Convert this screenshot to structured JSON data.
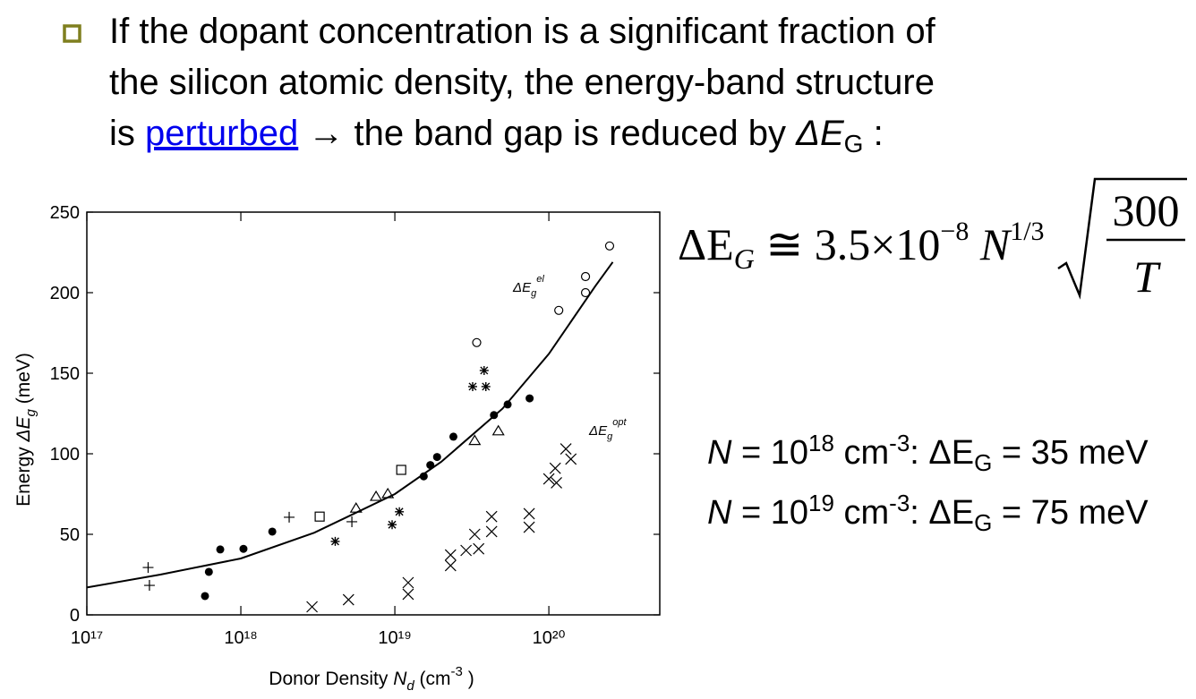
{
  "slide": {
    "bullet_lines": [
      "If the dopant concentration is a significant fraction of",
      "the silicon atomic density, the energy-band structure"
    ],
    "last_line": {
      "start": "is ",
      "link": "perturbed",
      "middle": " → the band gap is reduced by ",
      "symbol": "ΔE",
      "symbol_sub": "G",
      "end": " :"
    },
    "equation": {
      "lhs": "ΔE",
      "lhs_sub": "G",
      "coef": " ≅ 3.5×10",
      "coef_exp": "−8",
      "var": " N",
      "var_exp": "1/3",
      "numerator": "300",
      "denominator": "T"
    },
    "results": [
      {
        "var": "N",
        "base": " = 10",
        "exp": "18",
        "unit": " cm",
        "unit_exp": "-3",
        "delta": ": ΔE",
        "delta_sub": "G",
        "value": " = 35 meV"
      },
      {
        "var": "N",
        "base": " = 10",
        "exp": "19",
        "unit": " cm",
        "unit_exp": "-3",
        "delta": ": ΔE",
        "delta_sub": "G",
        "value": " = 75 meV"
      }
    ]
  },
  "chart_data": {
    "type": "scatter",
    "x_label": {
      "text": "Donor Density ",
      "var": "N",
      "sub": "d",
      "unit": " (cm",
      "unit_exp": "-3",
      "close": " )"
    },
    "y_label": {
      "text": "Energy ",
      "var": "ΔE",
      "sub": "g",
      "unit": " (meV)"
    },
    "annotations": [
      {
        "var": "ΔE",
        "sub": "g",
        "sup": "el"
      },
      {
        "var": "ΔE",
        "sub": "g",
        "sup": "opt"
      }
    ],
    "x_log": true,
    "xlim": [
      1e+17,
      5.25e+20
    ],
    "xticks": [
      {
        "value": 1e+17,
        "label": "10¹⁷"
      },
      {
        "value": 1e+18,
        "label": "10¹⁸"
      },
      {
        "value": 1e+19,
        "label": "10¹⁹"
      },
      {
        "value": 1e+20,
        "label": "10²⁰"
      }
    ],
    "ylim": [
      0,
      250
    ],
    "yticks": [
      0,
      50,
      100,
      150,
      200,
      250
    ],
    "color": "#000000",
    "series": [
      {
        "marker": "line",
        "x": [
          1e+17,
          3e+17,
          1e+18,
          3e+18,
          1e+19,
          2e+19,
          5e+19,
          1e+20,
          2e+20,
          2.6e+20
        ],
        "values": [
          17,
          25,
          35,
          51,
          75,
          95,
          128,
          162,
          204,
          219
        ]
      },
      {
        "marker": "filled-circle",
        "x": [
          5.85e+17,
          6.2e+17,
          7.35e+17,
          1.04e+18,
          1.6e+18,
          1.54e+19,
          1.7e+19,
          1.88e+19,
          2.4e+19,
          4.4e+19,
          5.4e+19,
          7.5e+19
        ],
        "values": [
          11.7,
          26.7,
          40.6,
          41,
          51.7,
          86,
          93,
          98,
          110.6,
          124,
          130.6,
          134.4
        ]
      },
      {
        "marker": "open-circle",
        "x": [
          3.4e+19,
          1.16e+20,
          1.73e+20,
          1.73e+20,
          2.48e+20
        ],
        "values": [
          169,
          189,
          210,
          200,
          229
        ]
      },
      {
        "marker": "asterisk",
        "x": [
          4.1e+18,
          9.6e+18,
          1.07e+19,
          3.2e+19,
          3.9e+19,
          3.8e+19
        ],
        "values": [
          45.6,
          56,
          64,
          141.7,
          141.7,
          151.7
        ]
      },
      {
        "marker": "triangle",
        "x": [
          5.6e+18,
          7.55e+18,
          9e+18,
          3.3e+19,
          4.7e+19
        ],
        "values": [
          66,
          73.3,
          75,
          108,
          114
        ]
      },
      {
        "marker": "square",
        "x": [
          3.25e+18,
          1.1e+19
        ],
        "values": [
          61,
          90
        ]
      },
      {
        "marker": "plus",
        "x": [
          2.5e+17,
          2.55e+17,
          2.06e+18,
          5.26e+18
        ],
        "values": [
          29.4,
          18.3,
          60.6,
          57.8
        ]
      },
      {
        "marker": "cross",
        "x": [
          2.9e+18,
          5e+18,
          1.22e+19,
          1.22e+19,
          2.3e+19,
          2.3e+19,
          2.9e+19,
          3.3e+19,
          3.5e+19,
          4.25e+19,
          4.25e+19,
          7.45e+19,
          7.45e+19,
          1e+20,
          1.1e+20,
          1.12e+20,
          1.29e+20,
          1.39e+20
        ],
        "values": [
          5,
          9.4,
          20,
          12.8,
          37.2,
          30.6,
          40,
          50,
          41,
          61,
          51.7,
          62.8,
          54.4,
          84.4,
          91,
          82,
          103,
          96.7
        ]
      }
    ]
  }
}
